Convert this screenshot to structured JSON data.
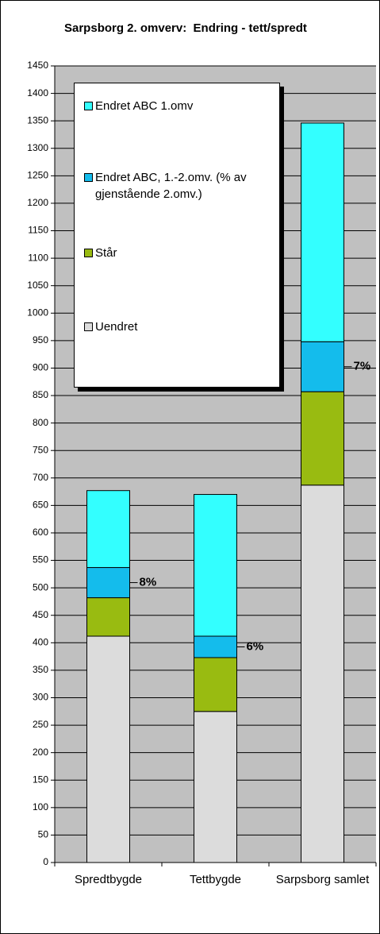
{
  "chart_data": {
    "type": "stacked_bar",
    "title": "Sarpsborg 2. omverv:  Endring - tett/spredt",
    "categories": [
      "Spredtbygde",
      "Tettbygde",
      "Sarpsborg samlet"
    ],
    "series": [
      {
        "name": "Uendret",
        "color": "#dcdcdc",
        "values": [
          412,
          275,
          687
        ]
      },
      {
        "name": "Står",
        "color": "#99bb11",
        "values": [
          70,
          98,
          170
        ]
      },
      {
        "name": "Endret ABC, 1.-2.omv. (% av gjenstående 2.omv.)",
        "color": "#14bcec",
        "values": [
          55,
          39,
          91
        ]
      },
      {
        "name": "Endret ABC 1.omv",
        "color": "#33ffff",
        "values": [
          140,
          258,
          398
        ]
      }
    ],
    "annotations": [
      "8%",
      "6%",
      "7%"
    ],
    "ylim": [
      0,
      1450
    ],
    "yticks": [
      0,
      50,
      100,
      150,
      200,
      250,
      300,
      350,
      400,
      450,
      500,
      550,
      600,
      650,
      700,
      750,
      800,
      850,
      900,
      950,
      1000,
      1050,
      1100,
      1150,
      1200,
      1250,
      1300,
      1350,
      1400,
      1450
    ],
    "grid": true
  }
}
